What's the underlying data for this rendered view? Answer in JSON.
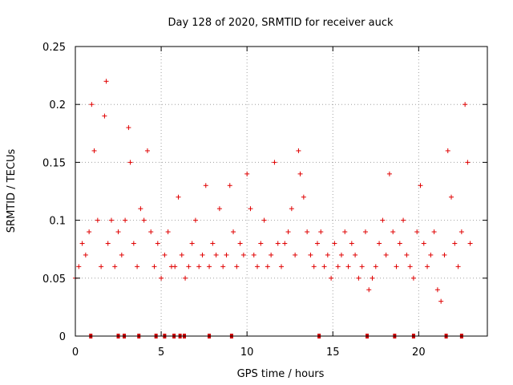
{
  "chart_data": {
    "type": "scatter",
    "title": "Day 128 of 2020, SRMTID for receiver auck",
    "xlabel": "GPS time / hours",
    "ylabel": "SRMTID / TECUs",
    "xlim": [
      0,
      24
    ],
    "ylim": [
      0,
      0.25
    ],
    "x_ticks": [
      "0",
      "5",
      "10",
      "15",
      "20"
    ],
    "y_ticks": [
      "0",
      "0.05",
      "0.1",
      "0.15",
      "0.2",
      "0.25"
    ],
    "grid": true,
    "marker": "plus",
    "series_color": "#e00000",
    "baseline_marker_hours": [
      0.9,
      2.5,
      2.85,
      3.7,
      4.7,
      5.2,
      5.75,
      6.1,
      6.35,
      7.8,
      9.1,
      14.2,
      17.0,
      18.6,
      19.7,
      21.6,
      22.5
    ],
    "series": [
      {
        "name": "SRMTID",
        "x": [
          0.0,
          0.2,
          0.4,
          0.6,
          0.8,
          0.95,
          1.1,
          1.3,
          1.5,
          1.7,
          1.8,
          1.9,
          2.1,
          2.3,
          2.5,
          2.7,
          2.9,
          3.1,
          3.2,
          3.4,
          3.6,
          3.8,
          4.0,
          4.2,
          4.4,
          4.6,
          4.8,
          5.0,
          5.2,
          5.4,
          5.6,
          5.8,
          6.0,
          6.2,
          6.4,
          6.6,
          6.8,
          7.0,
          7.2,
          7.4,
          7.6,
          7.8,
          8.0,
          8.2,
          8.4,
          8.6,
          8.8,
          9.0,
          9.2,
          9.4,
          9.6,
          9.8,
          10.0,
          10.2,
          10.4,
          10.6,
          10.8,
          11.0,
          11.2,
          11.4,
          11.6,
          11.8,
          12.0,
          12.2,
          12.4,
          12.6,
          12.8,
          13.0,
          13.1,
          13.3,
          13.5,
          13.7,
          13.9,
          14.1,
          14.3,
          14.5,
          14.7,
          14.9,
          15.1,
          15.3,
          15.5,
          15.7,
          15.9,
          16.1,
          16.3,
          16.5,
          16.7,
          16.9,
          17.1,
          17.3,
          17.5,
          17.7,
          17.9,
          18.1,
          18.3,
          18.5,
          18.7,
          18.9,
          19.1,
          19.3,
          19.5,
          19.7,
          19.9,
          20.1,
          20.3,
          20.5,
          20.7,
          20.9,
          21.1,
          21.3,
          21.5,
          21.7,
          21.9,
          22.1,
          22.3,
          22.5,
          22.7,
          22.85,
          23.0
        ],
        "y": [
          0.05,
          0.06,
          0.08,
          0.07,
          0.09,
          0.2,
          0.16,
          0.1,
          0.06,
          0.19,
          0.22,
          0.08,
          0.1,
          0.06,
          0.09,
          0.07,
          0.1,
          0.18,
          0.15,
          0.08,
          0.06,
          0.11,
          0.1,
          0.16,
          0.09,
          0.06,
          0.08,
          0.05,
          0.07,
          0.09,
          0.06,
          0.06,
          0.12,
          0.07,
          0.05,
          0.06,
          0.08,
          0.1,
          0.06,
          0.07,
          0.13,
          0.06,
          0.08,
          0.07,
          0.11,
          0.06,
          0.07,
          0.13,
          0.09,
          0.06,
          0.08,
          0.07,
          0.14,
          0.11,
          0.07,
          0.06,
          0.08,
          0.1,
          0.06,
          0.07,
          0.15,
          0.08,
          0.06,
          0.08,
          0.09,
          0.11,
          0.07,
          0.16,
          0.14,
          0.12,
          0.09,
          0.07,
          0.06,
          0.08,
          0.09,
          0.06,
          0.07,
          0.05,
          0.08,
          0.06,
          0.07,
          0.09,
          0.06,
          0.08,
          0.07,
          0.05,
          0.06,
          0.09,
          0.04,
          0.05,
          0.06,
          0.08,
          0.1,
          0.07,
          0.14,
          0.09,
          0.06,
          0.08,
          0.1,
          0.07,
          0.06,
          0.05,
          0.09,
          0.13,
          0.08,
          0.06,
          0.07,
          0.09,
          0.04,
          0.03,
          0.07,
          0.16,
          0.12,
          0.08,
          0.06,
          0.09,
          0.2,
          0.15,
          0.08
        ]
      }
    ]
  }
}
